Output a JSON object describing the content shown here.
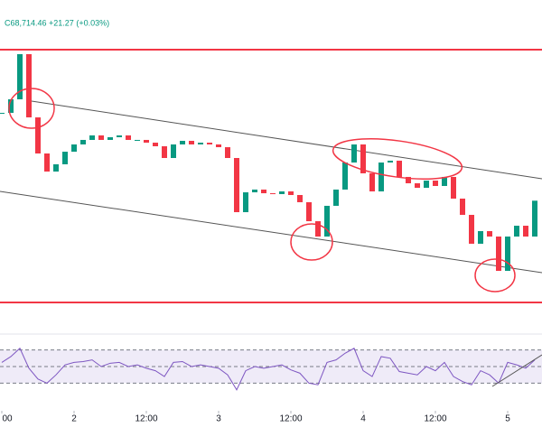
{
  "chart_data": {
    "type": "candlestick",
    "title": "C68,714.46 +21.27 (+0.03%)",
    "x": [
      0,
      1.5,
      3,
      4.5,
      6,
      7.5,
      9,
      10.5,
      12,
      13.5,
      15,
      16.5,
      18,
      19.5,
      21,
      22.5,
      24,
      25.5,
      27,
      28.5,
      30,
      31.5,
      33,
      34.5,
      36,
      37.5,
      39,
      40.5,
      42,
      43.5,
      45,
      46.5,
      48,
      49.5,
      51,
      52.5,
      54,
      55.5,
      57,
      58.5,
      60,
      61.5,
      63,
      64.5,
      66,
      67.5,
      69,
      70.5,
      72,
      73.5,
      75,
      76.5,
      78,
      79.5,
      81,
      82.5,
      84,
      85.5,
      87,
      88.5
    ],
    "close": [
      70152,
      70374,
      71113,
      70078,
      69487,
      69191,
      69310,
      69516,
      69635,
      69709,
      69783,
      69709,
      69753,
      69783,
      69709,
      69709,
      69664,
      69605,
      69413,
      69635,
      69694,
      69635,
      69664,
      69635,
      69590,
      69413,
      68526,
      68851,
      68896,
      68836,
      68822,
      68866,
      68807,
      68689,
      68378,
      68127,
      68630,
      68896,
      69339,
      69635,
      69162,
      68866,
      69339,
      69369,
      69103,
      68999,
      68925,
      69043,
      68955,
      69103,
      68748,
      68482,
      68009,
      68216,
      68127,
      67565,
      68127,
      68304,
      68127,
      68714
    ],
    "up_color": "#089981",
    "down_color": "#f23645",
    "xlim": [
      -0.3,
      89.7
    ],
    "ylim": [
      66900,
      72000
    ],
    "xticks": [
      {
        "value": 0,
        "label": "00"
      },
      {
        "value": 12,
        "label": "2"
      },
      {
        "value": 24,
        "label": "12:00"
      },
      {
        "value": 36,
        "label": "3"
      },
      {
        "value": 48,
        "label": "12:00"
      },
      {
        "value": 60,
        "label": "4"
      },
      {
        "value": 72,
        "label": "12:00"
      },
      {
        "value": 84,
        "label": "5"
      }
    ],
    "rsi": {
      "values": [
        55,
        62,
        72,
        48,
        35,
        30,
        40,
        52,
        55,
        56,
        58,
        50,
        54,
        55,
        50,
        52,
        48,
        45,
        38,
        55,
        56,
        50,
        52,
        50,
        48,
        40,
        22,
        45,
        50,
        48,
        50,
        52,
        46,
        42,
        30,
        28,
        55,
        58,
        66,
        72,
        45,
        38,
        62,
        60,
        44,
        42,
        40,
        50,
        45,
        55,
        38,
        32,
        28,
        45,
        40,
        30,
        55,
        52,
        48,
        58
      ],
      "color": "#7e57c2",
      "ylim": [
        0,
        100
      ],
      "levels": [
        70,
        50,
        30
      ]
    }
  }
}
